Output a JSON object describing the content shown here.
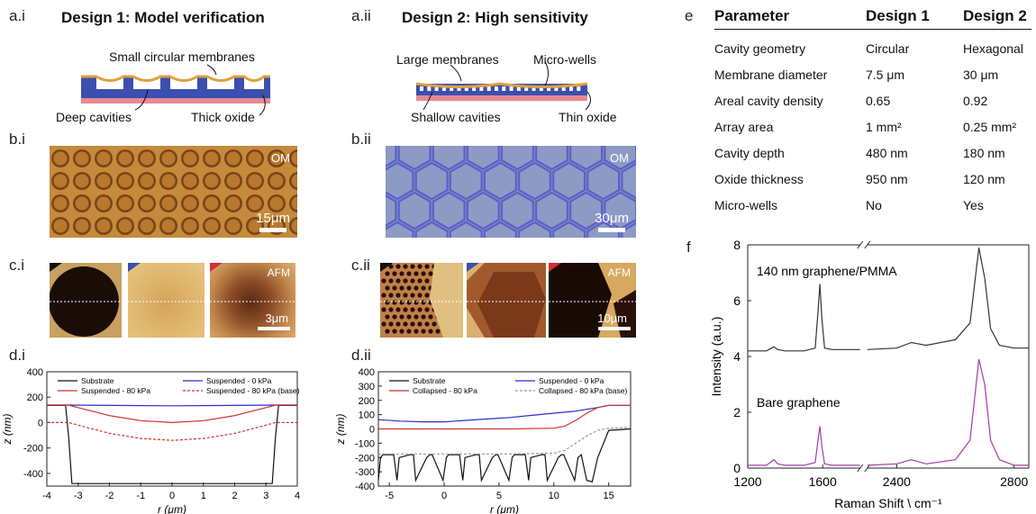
{
  "design1": {
    "panel_a": "a.i",
    "title": "Design 1: Model verification",
    "label_membranes": "Small circular membranes",
    "label_cavities": "Deep cavities",
    "label_oxide": "Thick oxide",
    "panel_b": "b.i",
    "om_tag": "OM",
    "om_scale": "15μm",
    "panel_c": "c.i",
    "afm_tag": "AFM",
    "afm_scale": "3μm",
    "panel_d": "d.i"
  },
  "design2": {
    "panel_a": "a.ii",
    "title": "Design 2: High sensitivity",
    "label_membranes": "Large membranes",
    "label_wells": "Micro-wells",
    "label_cavities": "Shallow cavities",
    "label_oxide": "Thin oxide",
    "panel_b": "b.ii",
    "om_tag": "OM",
    "om_scale": "30μm",
    "panel_c": "c.ii",
    "afm_tag": "AFM",
    "afm_scale": "10μm",
    "panel_d": "d.ii"
  },
  "panel_e": {
    "label": "e",
    "headers": [
      "Parameter",
      "Design 1",
      "Design 2"
    ],
    "rows": [
      {
        "param": "Cavity geometry",
        "d1": "Circular",
        "d2": "Hexagonal"
      },
      {
        "param": "Membrane diameter",
        "d1": "7.5 μm",
        "d2": "30 μm"
      },
      {
        "param": "Areal cavity density",
        "d1": "0.65",
        "d2": "0.92"
      },
      {
        "param": "Array area",
        "d1": "1 mm²",
        "d2": "0.25 mm²"
      },
      {
        "param": "Cavity depth",
        "d1": "480 nm",
        "d2": "180 nm"
      },
      {
        "param": "Oxide thickness",
        "d1": "950 nm",
        "d2": "120 nm"
      },
      {
        "param": "Micro-wells",
        "d1": "No",
        "d2": "Yes"
      }
    ]
  },
  "panel_f_label": "f",
  "chart_data": [
    {
      "type": "line",
      "panel": "d.i",
      "xlabel": "r (μm)",
      "ylabel": "z (nm)",
      "xlim": [
        -4,
        4
      ],
      "ylim": [
        -500,
        400
      ],
      "xticks": [
        -4,
        -3,
        -2,
        -1,
        0,
        1,
        2,
        3,
        4
      ],
      "yticks": [
        -400,
        -200,
        0,
        200,
        400
      ],
      "legend": "top",
      "series": [
        {
          "name": "Substrate",
          "color": "#111111",
          "dash": false,
          "x": [
            -4,
            -3.4,
            -3.3,
            -3.2,
            3.2,
            3.3,
            3.4,
            4
          ],
          "y": [
            135,
            135,
            -120,
            -480,
            -480,
            -120,
            135,
            135
          ]
        },
        {
          "name": "Suspended - 0 kPa",
          "color": "#2b2bd0",
          "dash": false,
          "x": [
            -4,
            -3.3,
            0,
            3.3,
            4
          ],
          "y": [
            138,
            138,
            132,
            138,
            138
          ]
        },
        {
          "name": "Suspended - 80 kPa",
          "color": "#d03030",
          "dash": false,
          "x": [
            -4,
            -3.3,
            -3,
            -2,
            -1,
            0,
            1,
            2,
            3,
            3.3,
            4
          ],
          "y": [
            138,
            138,
            118,
            55,
            15,
            0,
            15,
            55,
            118,
            138,
            138
          ]
        },
        {
          "name": "Suspended - 80 kPa (base)",
          "color": "#d03030",
          "dash": true,
          "x": [
            -4,
            -3.3,
            -3,
            -2,
            -1,
            0,
            1,
            2,
            3,
            3.3,
            4
          ],
          "y": [
            0,
            0,
            -20,
            -85,
            -125,
            -140,
            -125,
            -85,
            -20,
            0,
            0
          ]
        }
      ]
    },
    {
      "type": "line",
      "panel": "d.ii",
      "xlabel": "r (μm)",
      "ylabel": "z (nm)",
      "xlim": [
        -6,
        17
      ],
      "ylim": [
        -400,
        400
      ],
      "xticks": [
        -5,
        0,
        5,
        10,
        15
      ],
      "yticks": [
        -400,
        -300,
        -200,
        -100,
        0,
        100,
        200,
        300,
        400
      ],
      "legend": "top",
      "series": [
        {
          "name": "Substrate",
          "color": "#111111",
          "dash": false,
          "x": [
            -6,
            -5.8,
            -5.6,
            -4.6,
            -4.3,
            -4.1,
            -3.1,
            -2.8,
            -2.6,
            -1.6,
            -1.3,
            -1.1,
            -0.1,
            0.2,
            0.4,
            1.4,
            1.7,
            1.9,
            2.9,
            3.2,
            3.4,
            4.4,
            4.7,
            4.9,
            5.9,
            6.2,
            6.4,
            7.4,
            7.7,
            7.9,
            8.9,
            9.2,
            9.4,
            10.4,
            10.7,
            10.9,
            11.9,
            12.2,
            12.5,
            13,
            13.5,
            14,
            15,
            17
          ],
          "y": [
            -360,
            -200,
            -180,
            -180,
            -360,
            -200,
            -180,
            -180,
            -360,
            -200,
            -180,
            -180,
            -360,
            -200,
            -180,
            -180,
            -360,
            -200,
            -180,
            -180,
            -360,
            -200,
            -180,
            -180,
            -360,
            -200,
            -180,
            -180,
            -360,
            -200,
            -180,
            -180,
            -360,
            -200,
            -180,
            -180,
            -360,
            -200,
            -180,
            -360,
            -370,
            -200,
            -10,
            0
          ]
        },
        {
          "name": "Suspended - 0 kPa",
          "color": "#2b2bd0",
          "dash": false,
          "x": [
            -6,
            -4,
            -2,
            0,
            2,
            4,
            6,
            8,
            10,
            12,
            14,
            15,
            17
          ],
          "y": [
            65,
            55,
            50,
            50,
            60,
            70,
            80,
            95,
            110,
            125,
            150,
            165,
            165
          ]
        },
        {
          "name": "Collapsed - 80 kPa",
          "color": "#d03030",
          "dash": false,
          "x": [
            -6,
            -2,
            2,
            6,
            10,
            11,
            12,
            13,
            14,
            15,
            17
          ],
          "y": [
            0,
            0,
            0,
            0,
            5,
            20,
            60,
            110,
            150,
            165,
            165
          ]
        },
        {
          "name": "Collapsed - 80 kPa (base)",
          "color": "#999999",
          "dash": true,
          "x": [
            -6,
            -2,
            2,
            6,
            10,
            11,
            12,
            13,
            14,
            15,
            17
          ],
          "y": [
            -175,
            -175,
            -175,
            -175,
            -170,
            -150,
            -100,
            -50,
            -10,
            5,
            10
          ]
        }
      ]
    },
    {
      "type": "line",
      "panel": "f",
      "xlabel": "Raman Shift \\ cm⁻¹",
      "ylabel": "Intensity (a.u.)",
      "ylim": [
        0,
        8
      ],
      "yticks": [
        0,
        2,
        4,
        6,
        8
      ],
      "xticks": [
        1200,
        1600,
        2400,
        2800
      ],
      "broken_axis": [
        1800,
        2300
      ],
      "annotations": [
        "140 nm graphene/PMMA",
        "Bare graphene"
      ],
      "series": [
        {
          "color": "#333333",
          "x": [
            1200,
            1300,
            1340,
            1360,
            1400,
            1500,
            1560,
            1575,
            1585,
            1595,
            1610,
            1650,
            1700,
            1800,
            2300,
            2400,
            2450,
            2500,
            2600,
            2650,
            2680,
            2700,
            2720,
            2750,
            2800,
            2850
          ],
          "y": [
            4.2,
            4.2,
            4.35,
            4.25,
            4.2,
            4.2,
            4.3,
            5.6,
            6.6,
            5.4,
            4.3,
            4.25,
            4.25,
            4.25,
            4.25,
            4.3,
            4.5,
            4.4,
            4.6,
            5.2,
            7.9,
            6.8,
            5.0,
            4.4,
            4.3,
            4.3
          ]
        },
        {
          "color": "#a13aa8",
          "x": [
            1200,
            1300,
            1340,
            1360,
            1400,
            1500,
            1560,
            1575,
            1585,
            1595,
            1610,
            1650,
            1700,
            1800,
            2300,
            2400,
            2450,
            2500,
            2600,
            2650,
            2680,
            2700,
            2720,
            2750,
            2800,
            2850
          ],
          "y": [
            0.1,
            0.1,
            0.3,
            0.15,
            0.1,
            0.1,
            0.2,
            1.0,
            1.5,
            0.8,
            0.15,
            0.1,
            0.1,
            0.1,
            0.1,
            0.15,
            0.3,
            0.15,
            0.3,
            1.0,
            3.9,
            3.0,
            1.0,
            0.3,
            0.1,
            0.1
          ]
        }
      ]
    }
  ]
}
